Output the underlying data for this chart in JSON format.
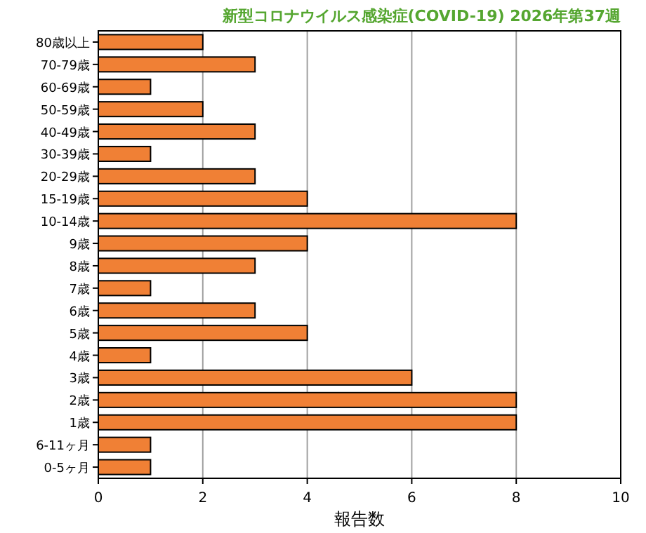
{
  "chart_data": {
    "type": "bar",
    "orientation": "horizontal",
    "title": "新型コロナウイルス感染症(COVID-19) 2026年第37週",
    "xlabel": "報告数",
    "categories": [
      "80歳以上",
      "70-79歳",
      "60-69歳",
      "50-59歳",
      "40-49歳",
      "30-39歳",
      "20-29歳",
      "15-19歳",
      "10-14歳",
      "9歳",
      "8歳",
      "7歳",
      "6歳",
      "5歳",
      "4歳",
      "3歳",
      "2歳",
      "1歳",
      "6-11ヶ月",
      "0-5ヶ月"
    ],
    "values": [
      2,
      3,
      1,
      2,
      3,
      1,
      3,
      4,
      8,
      4,
      3,
      1,
      3,
      4,
      1,
      6,
      8,
      8,
      1,
      1
    ],
    "color": "#f08035",
    "xlim": [
      0,
      10
    ],
    "xticks": [
      0,
      2,
      4,
      6,
      8,
      10
    ],
    "grid": "x"
  }
}
